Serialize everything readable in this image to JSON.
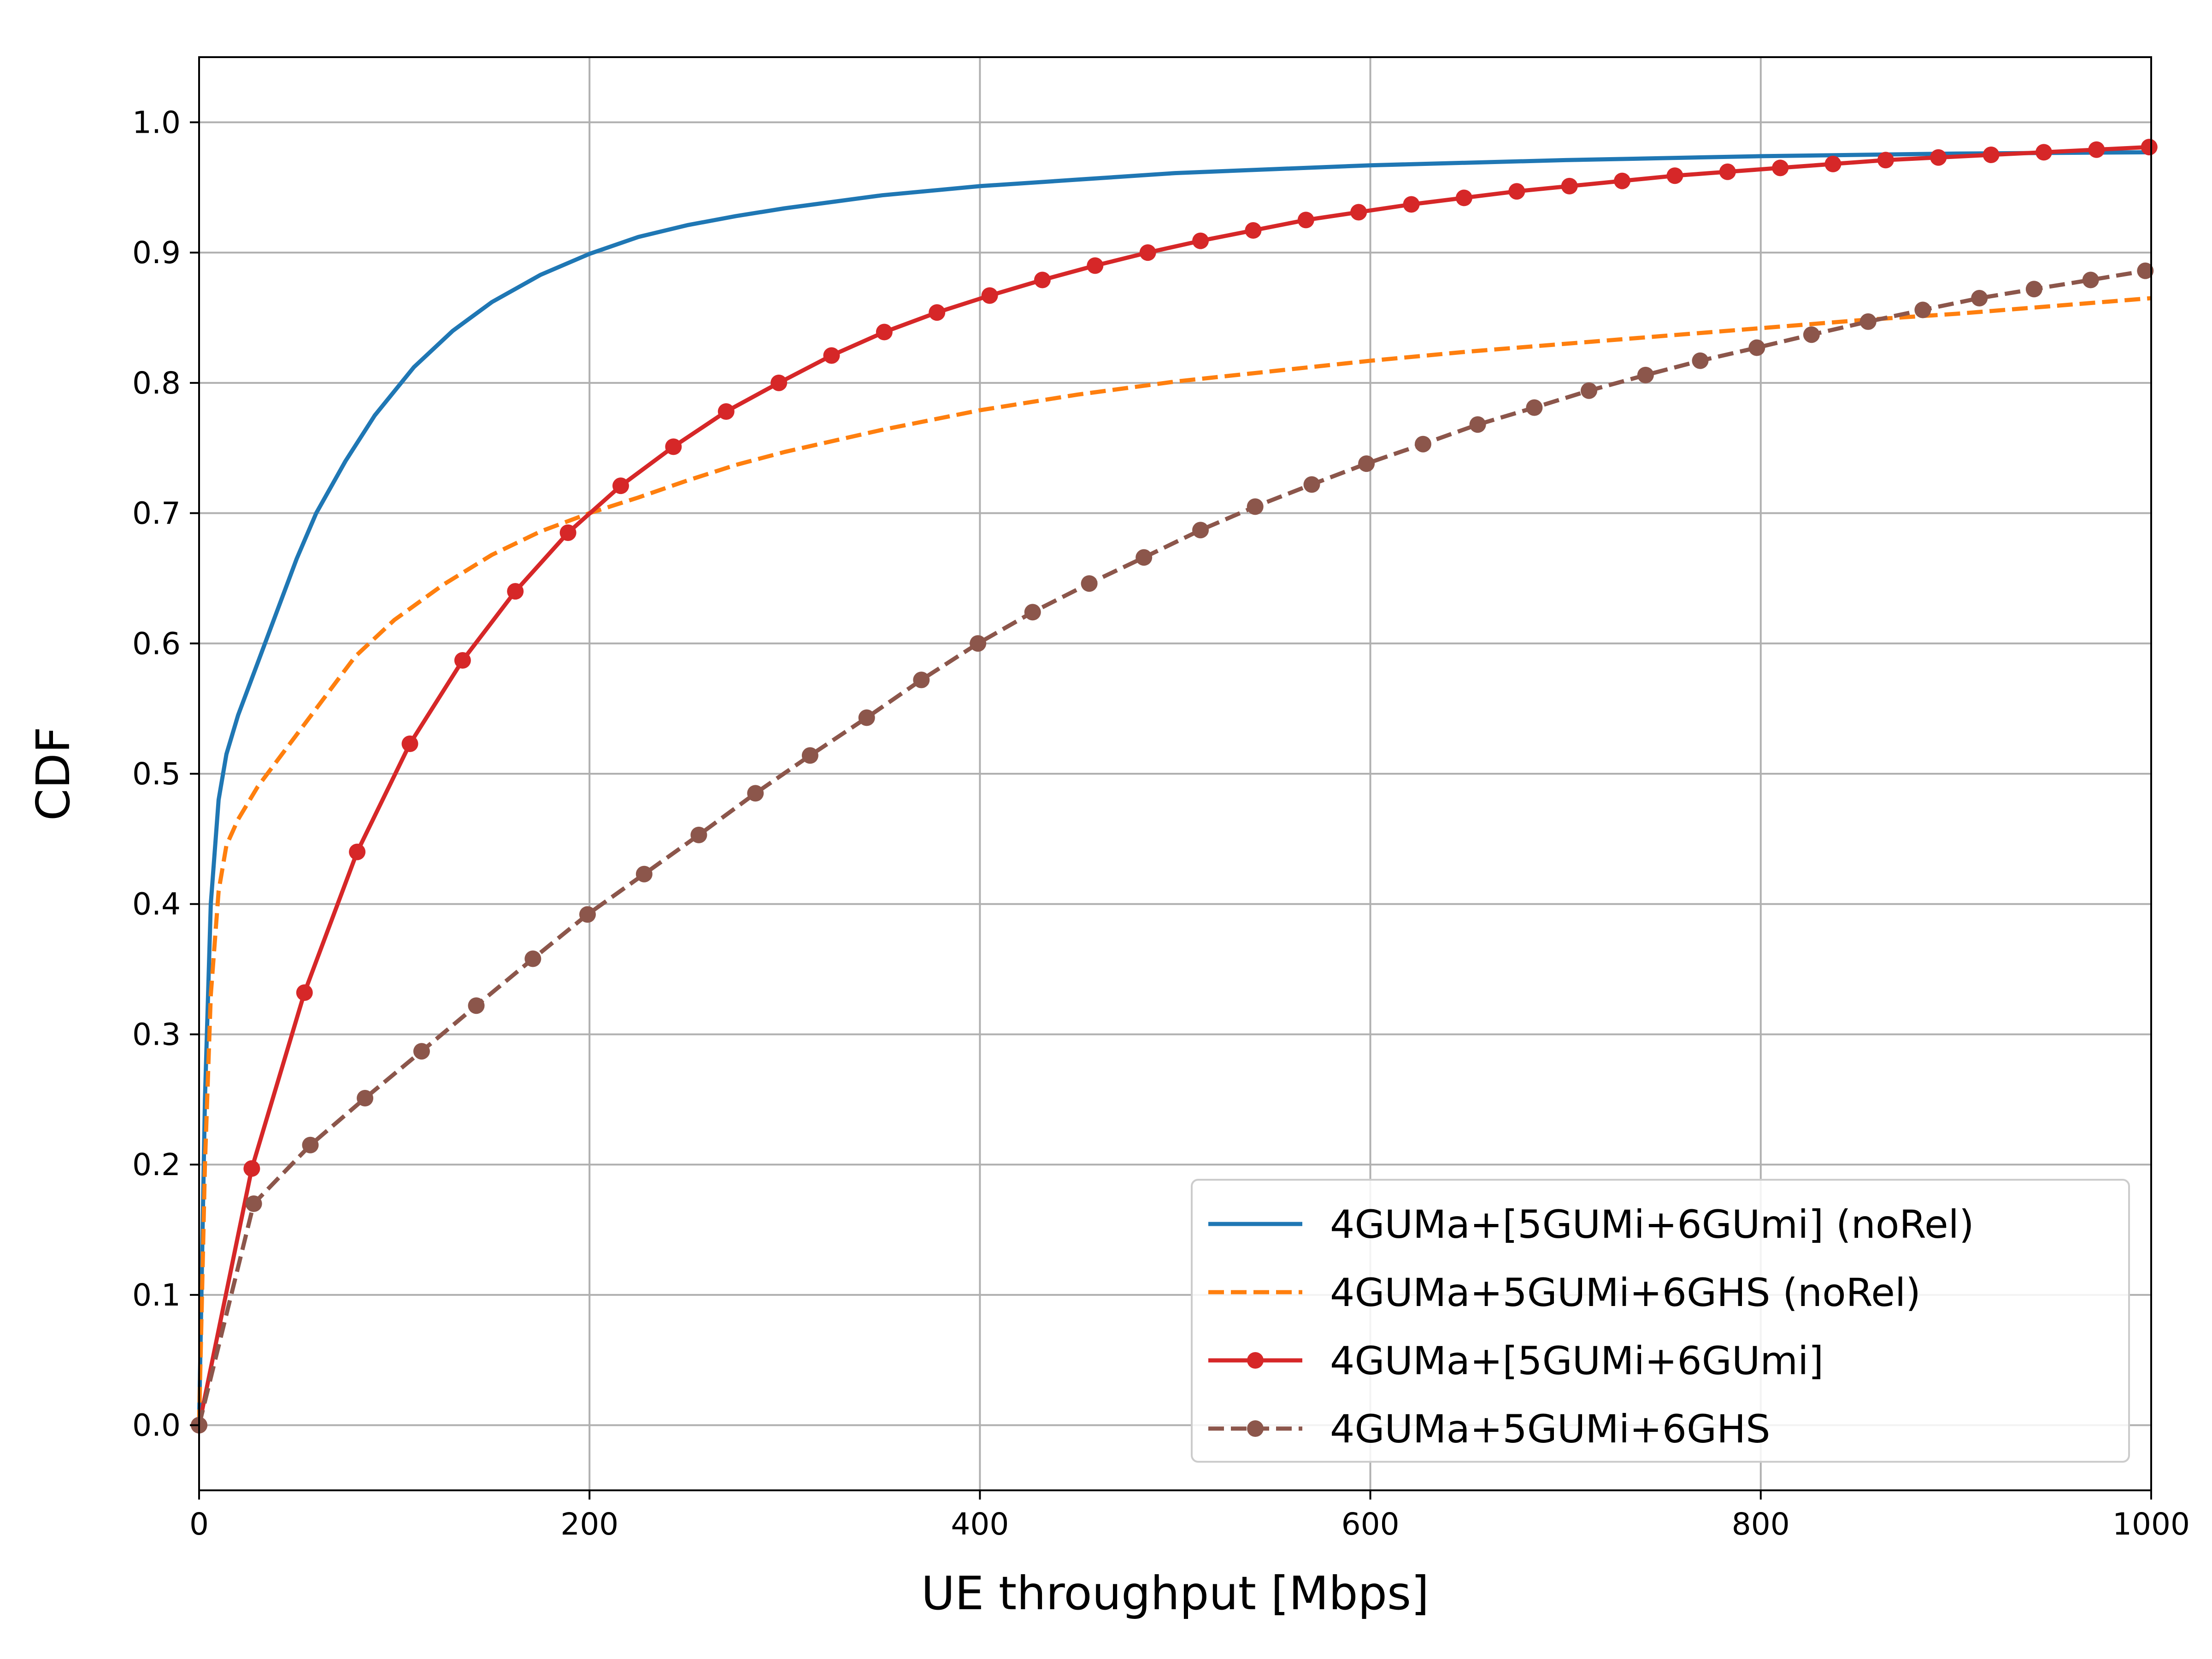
{
  "chart_data": {
    "type": "line",
    "xlabel": "UE throughput [Mbps]",
    "ylabel": "CDF",
    "xlim": [
      0,
      1000
    ],
    "ylim": [
      -0.05,
      1.05
    ],
    "xticks": [
      0,
      200,
      400,
      600,
      800,
      1000
    ],
    "yticks": [
      0.0,
      0.1,
      0.2,
      0.3,
      0.4,
      0.5,
      0.6,
      0.7,
      0.8,
      0.9,
      1.0
    ],
    "xtick_labels": [
      "0",
      "200",
      "400",
      "600",
      "800",
      "1000"
    ],
    "ytick_labels": [
      "0.0",
      "0.1",
      "0.2",
      "0.3",
      "0.4",
      "0.5",
      "0.6",
      "0.7",
      "0.8",
      "0.9",
      "1.0"
    ],
    "grid": true,
    "legend_position": "lower-right",
    "series": [
      {
        "name": "4GUMa+[5GUMi+6GUmi] (noRel)",
        "color": "#1f77b4",
        "dash": "solid",
        "marker": "none",
        "x": [
          0,
          3,
          6,
          10,
          14,
          20,
          30,
          40,
          50,
          60,
          75,
          90,
          110,
          130,
          150,
          175,
          200,
          225,
          250,
          275,
          300,
          350,
          400,
          450,
          500,
          550,
          600,
          700,
          800,
          900,
          1000
        ],
        "y": [
          0.0,
          0.25,
          0.4,
          0.48,
          0.515,
          0.545,
          0.585,
          0.625,
          0.665,
          0.7,
          0.74,
          0.775,
          0.812,
          0.84,
          0.862,
          0.883,
          0.899,
          0.912,
          0.921,
          0.928,
          0.934,
          0.944,
          0.951,
          0.956,
          0.961,
          0.964,
          0.967,
          0.971,
          0.974,
          0.976,
          0.977
        ]
      },
      {
        "name": "4GUMa+5GUMi+6GHS (noRel)",
        "color": "#ff7f0e",
        "dash": "dashed",
        "marker": "none",
        "x": [
          0,
          3,
          6,
          10,
          14,
          20,
          30,
          40,
          60,
          80,
          100,
          125,
          150,
          175,
          200,
          225,
          250,
          275,
          300,
          350,
          400,
          450,
          500,
          550,
          600,
          650,
          700,
          750,
          800,
          850,
          900,
          950,
          1000
        ],
        "y": [
          0.0,
          0.2,
          0.33,
          0.41,
          0.445,
          0.465,
          0.49,
          0.51,
          0.55,
          0.59,
          0.618,
          0.645,
          0.668,
          0.686,
          0.7,
          0.712,
          0.725,
          0.737,
          0.747,
          0.764,
          0.779,
          0.791,
          0.801,
          0.809,
          0.817,
          0.824,
          0.83,
          0.836,
          0.842,
          0.848,
          0.853,
          0.859,
          0.865
        ]
      },
      {
        "name": "4GUMa+[5GUMi+6GUmi]",
        "color": "#d62728",
        "dash": "solid",
        "marker": "circle",
        "x": [
          0,
          27,
          54,
          81,
          108,
          135,
          162,
          189,
          216,
          243,
          270,
          297,
          324,
          351,
          378,
          405,
          432,
          459,
          486,
          513,
          540,
          567,
          594,
          621,
          648,
          675,
          702,
          729,
          756,
          783,
          810,
          837,
          864,
          891,
          918,
          945,
          972,
          999
        ],
        "y": [
          0.0,
          0.197,
          0.332,
          0.44,
          0.523,
          0.587,
          0.64,
          0.685,
          0.721,
          0.751,
          0.778,
          0.8,
          0.821,
          0.839,
          0.854,
          0.867,
          0.879,
          0.89,
          0.9,
          0.909,
          0.917,
          0.925,
          0.931,
          0.937,
          0.942,
          0.947,
          0.951,
          0.955,
          0.959,
          0.962,
          0.965,
          0.968,
          0.971,
          0.973,
          0.975,
          0.977,
          0.979,
          0.981
        ]
      },
      {
        "name": "4GUMa+5GUMi+6GHS",
        "color": "#8c564b",
        "dash": "dashed",
        "marker": "circle",
        "x": [
          0,
          28,
          57,
          85,
          114,
          142,
          171,
          199,
          228,
          256,
          285,
          313,
          342,
          370,
          399,
          427,
          456,
          484,
          513,
          541,
          570,
          598,
          627,
          655,
          684,
          712,
          741,
          769,
          798,
          826,
          855,
          883,
          912,
          940,
          969,
          997
        ],
        "y": [
          0.0,
          0.17,
          0.215,
          0.251,
          0.287,
          0.322,
          0.358,
          0.392,
          0.423,
          0.453,
          0.485,
          0.514,
          0.543,
          0.572,
          0.6,
          0.624,
          0.646,
          0.666,
          0.687,
          0.705,
          0.722,
          0.738,
          0.753,
          0.768,
          0.781,
          0.794,
          0.806,
          0.817,
          0.827,
          0.837,
          0.847,
          0.856,
          0.865,
          0.872,
          0.879,
          0.886
        ]
      }
    ]
  }
}
